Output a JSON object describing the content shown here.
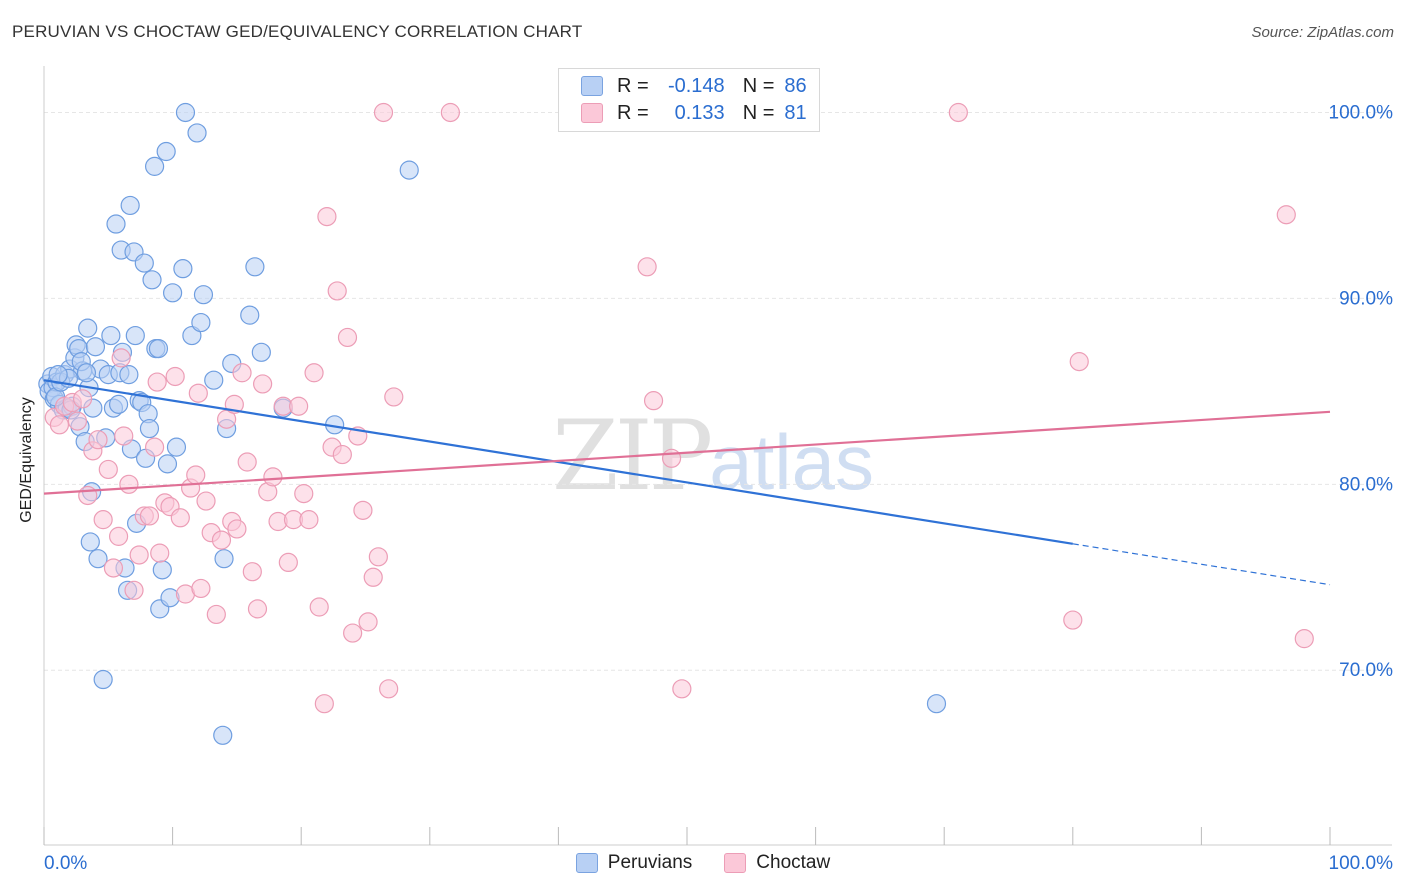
{
  "title": "PERUVIAN VS CHOCTAW GED/EQUIVALENCY CORRELATION CHART",
  "source": "Source: ZipAtlas.com",
  "watermark": {
    "zip": "ZIP",
    "atlas": "atlas"
  },
  "legend": {
    "rows": [
      {
        "r_label": "R =",
        "r_value": "-0.148",
        "n_label": "N =",
        "n_value": "86"
      },
      {
        "r_label": "R =",
        "r_value": "0.133",
        "n_label": "N =",
        "n_value": "81"
      }
    ]
  },
  "colors": {
    "peruvians_fill": "#b8d0f4",
    "peruvians_stroke": "#6f9ee0",
    "peruvians_line": "#2f72d6",
    "choctaw_fill": "#fbc8d8",
    "choctaw_stroke": "#ec9db6",
    "choctaw_line": "#e07096",
    "tick_label": "#2a6dd0",
    "grid": "#e6e6e6"
  },
  "chart_data": {
    "type": "scatter",
    "title": "PERUVIAN VS CHOCTAW GED/EQUIVALENCY CORRELATION CHART",
    "xlabel": "",
    "ylabel": "GED/Equivalency",
    "xlim": [
      0,
      100
    ],
    "ylim": [
      60.6,
      102.5
    ],
    "x_tick_labels": [
      {
        "value": 0,
        "label": "0.0%"
      },
      {
        "value": 100,
        "label": "100.0%"
      }
    ],
    "y_tick_labels": [
      {
        "value": 70,
        "label": "70.0%"
      },
      {
        "value": 80,
        "label": "80.0%"
      },
      {
        "value": 90,
        "label": "90.0%"
      },
      {
        "value": 100,
        "label": "100.0%"
      }
    ],
    "grid": true,
    "legend_position": "bottom-center",
    "series": [
      {
        "name": "Peruvians",
        "trend": {
          "x": [
            0,
            80
          ],
          "y": [
            85.6,
            76.8
          ],
          "dashed_to": [
            100,
            74.6
          ]
        },
        "points": [
          [
            0.3,
            85.4
          ],
          [
            0.4,
            85.0
          ],
          [
            0.6,
            85.8
          ],
          [
            0.7,
            85.2
          ],
          [
            0.8,
            84.6
          ],
          [
            1.0,
            85.5
          ],
          [
            1.2,
            84.3
          ],
          [
            1.5,
            84.0
          ],
          [
            1.6,
            85.9
          ],
          [
            1.8,
            84.1
          ],
          [
            2.0,
            86.2
          ],
          [
            2.2,
            84.2
          ],
          [
            2.4,
            86.8
          ],
          [
            2.5,
            87.5
          ],
          [
            2.7,
            87.3
          ],
          [
            2.8,
            83.1
          ],
          [
            3.0,
            86.1
          ],
          [
            3.2,
            82.3
          ],
          [
            3.4,
            88.4
          ],
          [
            3.5,
            85.2
          ],
          [
            3.7,
            79.6
          ],
          [
            3.8,
            84.1
          ],
          [
            3.6,
            76.9
          ],
          [
            4.0,
            87.4
          ],
          [
            4.2,
            76.0
          ],
          [
            4.4,
            86.2
          ],
          [
            4.6,
            69.5
          ],
          [
            4.8,
            82.5
          ],
          [
            5.0,
            85.9
          ],
          [
            5.2,
            88.0
          ],
          [
            5.4,
            84.1
          ],
          [
            5.6,
            94.0
          ],
          [
            5.8,
            84.3
          ],
          [
            6.0,
            92.6
          ],
          [
            5.9,
            86.0
          ],
          [
            6.1,
            87.1
          ],
          [
            6.3,
            75.5
          ],
          [
            6.5,
            74.3
          ],
          [
            6.6,
            85.9
          ],
          [
            6.7,
            95.0
          ],
          [
            6.8,
            81.9
          ],
          [
            7.0,
            92.5
          ],
          [
            7.1,
            88.0
          ],
          [
            7.2,
            77.9
          ],
          [
            7.4,
            84.5
          ],
          [
            7.6,
            84.4
          ],
          [
            7.8,
            91.9
          ],
          [
            7.9,
            81.4
          ],
          [
            8.1,
            83.8
          ],
          [
            8.2,
            83.0
          ],
          [
            8.4,
            91.0
          ],
          [
            8.6,
            97.1
          ],
          [
            8.7,
            87.3
          ],
          [
            8.9,
            87.3
          ],
          [
            9.0,
            73.3
          ],
          [
            9.2,
            75.4
          ],
          [
            9.5,
            97.9
          ],
          [
            9.6,
            81.1
          ],
          [
            9.8,
            73.9
          ],
          [
            10.0,
            90.3
          ],
          [
            10.3,
            82.0
          ],
          [
            10.8,
            91.6
          ],
          [
            11.0,
            100.0
          ],
          [
            11.5,
            88.0
          ],
          [
            11.9,
            98.9
          ],
          [
            12.2,
            88.7
          ],
          [
            12.4,
            90.2
          ],
          [
            13.2,
            85.6
          ],
          [
            14.0,
            76.0
          ],
          [
            14.2,
            83.0
          ],
          [
            14.6,
            86.5
          ],
          [
            13.9,
            66.5
          ],
          [
            16.0,
            89.1
          ],
          [
            16.4,
            91.7
          ],
          [
            16.9,
            87.1
          ],
          [
            18.6,
            84.1
          ],
          [
            22.6,
            83.2
          ],
          [
            28.4,
            96.9
          ],
          [
            69.4,
            68.2
          ],
          [
            0.9,
            84.7
          ],
          [
            1.3,
            85.5
          ],
          [
            2.1,
            84.0
          ],
          [
            2.9,
            86.6
          ],
          [
            1.9,
            85.7
          ],
          [
            3.3,
            86.0
          ],
          [
            1.1,
            85.9
          ]
        ]
      },
      {
        "name": "Choctaw",
        "trend": {
          "x": [
            0,
            100
          ],
          "y": [
            79.5,
            83.9
          ]
        },
        "points": [
          [
            0.8,
            83.6
          ],
          [
            1.2,
            83.2
          ],
          [
            1.6,
            84.2
          ],
          [
            2.2,
            84.4
          ],
          [
            2.6,
            83.4
          ],
          [
            3.0,
            84.6
          ],
          [
            3.4,
            79.4
          ],
          [
            3.8,
            81.8
          ],
          [
            4.2,
            82.4
          ],
          [
            4.6,
            78.1
          ],
          [
            5.0,
            80.8
          ],
          [
            5.4,
            75.5
          ],
          [
            5.8,
            77.2
          ],
          [
            6.2,
            82.6
          ],
          [
            6.6,
            80.0
          ],
          [
            7.0,
            74.3
          ],
          [
            7.4,
            76.2
          ],
          [
            7.8,
            78.3
          ],
          [
            8.2,
            78.3
          ],
          [
            8.6,
            82.0
          ],
          [
            9.0,
            76.3
          ],
          [
            9.4,
            79.0
          ],
          [
            9.8,
            78.8
          ],
          [
            10.2,
            85.8
          ],
          [
            10.6,
            78.2
          ],
          [
            11.0,
            74.1
          ],
          [
            11.4,
            79.8
          ],
          [
            11.8,
            80.5
          ],
          [
            12.2,
            74.4
          ],
          [
            12.6,
            79.1
          ],
          [
            13.0,
            77.4
          ],
          [
            13.4,
            73.0
          ],
          [
            13.8,
            77.0
          ],
          [
            14.2,
            83.5
          ],
          [
            14.6,
            78.0
          ],
          [
            15.0,
            77.6
          ],
          [
            15.4,
            86.0
          ],
          [
            15.8,
            81.2
          ],
          [
            16.2,
            75.3
          ],
          [
            16.6,
            73.3
          ],
          [
            17.0,
            85.4
          ],
          [
            17.4,
            79.6
          ],
          [
            17.8,
            80.4
          ],
          [
            18.2,
            78.0
          ],
          [
            18.6,
            84.2
          ],
          [
            19.0,
            75.8
          ],
          [
            19.4,
            78.1
          ],
          [
            19.8,
            84.2
          ],
          [
            20.2,
            79.5
          ],
          [
            20.6,
            78.1
          ],
          [
            21.0,
            86.0
          ],
          [
            21.4,
            73.4
          ],
          [
            21.8,
            68.2
          ],
          [
            22.0,
            94.4
          ],
          [
            22.4,
            82.0
          ],
          [
            22.8,
            90.4
          ],
          [
            23.2,
            81.6
          ],
          [
            23.6,
            87.9
          ],
          [
            24.0,
            72.0
          ],
          [
            24.4,
            82.6
          ],
          [
            24.8,
            78.6
          ],
          [
            25.2,
            72.6
          ],
          [
            25.6,
            75.0
          ],
          [
            26.0,
            76.1
          ],
          [
            26.4,
            100.0
          ],
          [
            26.8,
            69.0
          ],
          [
            27.2,
            84.7
          ],
          [
            31.6,
            100.0
          ],
          [
            46.9,
            91.7
          ],
          [
            47.4,
            84.5
          ],
          [
            48.8,
            81.4
          ],
          [
            49.6,
            69.0
          ],
          [
            71.1,
            100.0
          ],
          [
            80.0,
            72.7
          ],
          [
            80.5,
            86.6
          ],
          [
            96.6,
            94.5
          ],
          [
            98.0,
            71.7
          ],
          [
            8.8,
            85.5
          ],
          [
            12.0,
            84.9
          ],
          [
            14.8,
            84.3
          ],
          [
            6.0,
            86.8
          ]
        ]
      }
    ]
  }
}
